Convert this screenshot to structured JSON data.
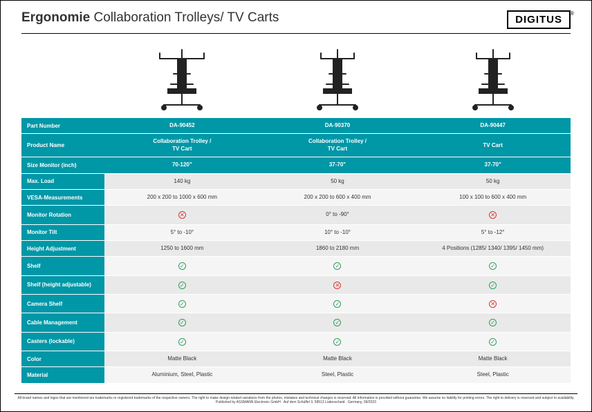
{
  "header": {
    "title_bold": "Ergonomie",
    "title_rest": " Collaboration Trolleys/ TV Carts",
    "logo_text": "DIGITUS",
    "logo_reg": "®"
  },
  "colors": {
    "teal": "#0097a7",
    "grey_even": "#e9e9e9",
    "grey_odd": "#f5f5f5",
    "check": "#2e9e5b",
    "cross": "#d9362f"
  },
  "rows": {
    "part_number": {
      "label": "Part Number",
      "type": "teal",
      "vals": [
        "DA-90452",
        "DA-90370",
        "DA-90447"
      ]
    },
    "product_name": {
      "label": "Product Name",
      "type": "teal",
      "vals": [
        "Collaboration Trolley /<br>TV Cart",
        "Collaboration Trolley /<br>TV Cart",
        "TV Cart"
      ]
    },
    "size_monitor": {
      "label": "Size Monitor (inch)",
      "type": "teal",
      "vals": [
        "70-120\"",
        "37-70\"",
        "37-70\""
      ]
    },
    "max_load": {
      "label": "Max. Load",
      "type": "grey",
      "vals": [
        "140 kg",
        "50 kg",
        "50 kg"
      ]
    },
    "vesa": {
      "label": "VESA-Measurements",
      "type": "grey",
      "vals": [
        "200 x 200 to 1000 x 600 mm",
        "200 x 200 to 600 x 400 mm",
        "100 x 100 to 600 x 400 mm"
      ]
    },
    "rotation": {
      "label": "Monitor Rotation",
      "type": "grey",
      "vals": [
        "cross",
        "0° to -90°",
        "cross"
      ]
    },
    "tilt": {
      "label": "Monitor Tilt",
      "type": "grey",
      "vals": [
        "5° to -10°",
        "10° to -10°",
        "5° to -12°"
      ]
    },
    "height_adj": {
      "label": "Height Adjustment",
      "type": "grey",
      "vals": [
        "1250 to 1600 mm",
        "1860 to 2180 mm",
        "4 Positions (1285/ 1340/ 1395/ 1450 mm)"
      ]
    },
    "shelf": {
      "label": "Shelf",
      "type": "grey",
      "vals": [
        "check",
        "check",
        "check"
      ]
    },
    "shelf_adj": {
      "label": "Shelf (height adjustable)",
      "type": "grey",
      "vals": [
        "check",
        "cross",
        "check"
      ]
    },
    "camera_shelf": {
      "label": "Camera Shelf",
      "type": "grey",
      "vals": [
        "check",
        "check",
        "cross"
      ]
    },
    "cable_mgmt": {
      "label": "Cable Management",
      "type": "grey",
      "vals": [
        "check",
        "check",
        "check"
      ]
    },
    "casters": {
      "label": "Casters (lockable)",
      "type": "grey",
      "vals": [
        "check",
        "check",
        "check"
      ]
    },
    "color": {
      "label": "Color",
      "type": "grey",
      "vals": [
        "Matte Black",
        "Matte Black",
        "Matte Black"
      ]
    },
    "material": {
      "label": "Material",
      "type": "grey",
      "vals": [
        "Aluminium, Steel, Plastic",
        "Steel, Plastic",
        "Steel, Plastic"
      ]
    }
  },
  "row_order": [
    "part_number",
    "product_name",
    "size_monitor",
    "max_load",
    "vesa",
    "rotation",
    "tilt",
    "height_adj",
    "shelf",
    "shelf_adj",
    "camera_shelf",
    "cable_mgmt",
    "casters",
    "color",
    "material"
  ],
  "footer": "All brand names and logos that are mentioned are trademarks or registered trademarks of the respective owners. The right to make design-related variations from the photos, mistakes and technical changes is reserved. All information is provided without guarantee. We assume no liability for printing errors. The right to delivery is reserved and subject to availability. Published by ASSMANN Electronic GmbH · Auf dem Schüffel 3, 58513 Lüdenscheid · Germany, 09/2023"
}
